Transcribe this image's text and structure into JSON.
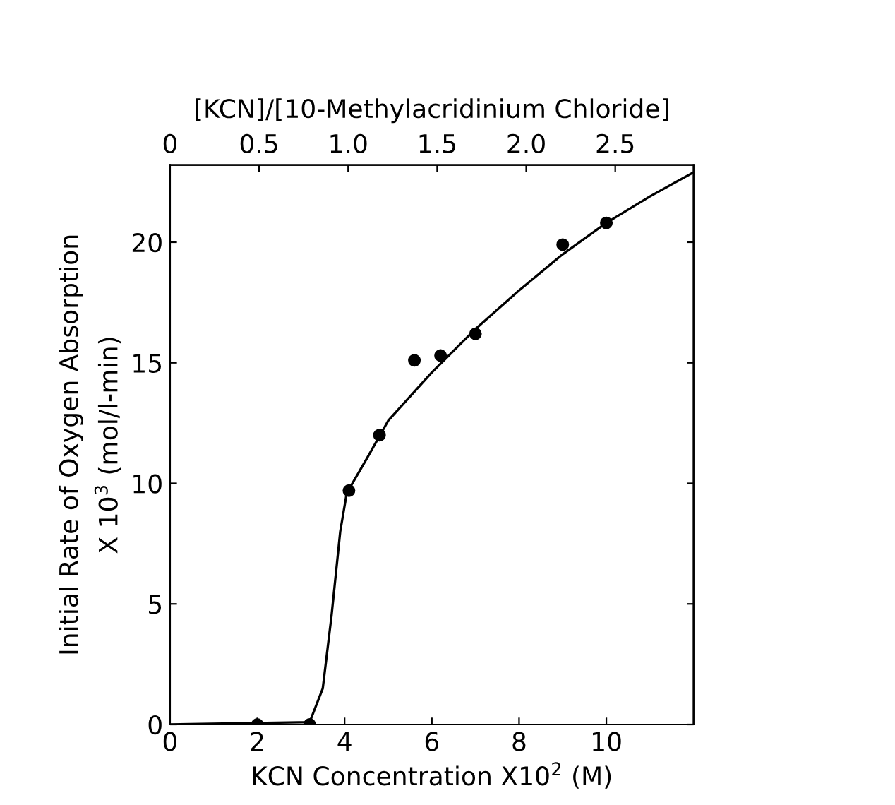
{
  "chart_data": {
    "type": "scatter",
    "xlabel": "KCN Concentration X10$^{2}$ (M)",
    "ylabel": "Initial Rate of Oxygen Absorption\nX 10$^{3}$ (mol/l-min)",
    "x2label": "[KCN]/[10-Methylacridinium Chloride]",
    "xlim": [
      0,
      12
    ],
    "xticks": [
      0,
      2,
      4,
      6,
      8,
      10
    ],
    "ylim": [
      0,
      23.2
    ],
    "yticks": [
      0,
      5,
      10,
      15,
      20
    ],
    "x2lim": [
      0,
      2.94
    ],
    "x2ticks": [
      0,
      0.5,
      {
        "value": 1.0,
        "label": "1.0"
      },
      1.5,
      {
        "value": 2.0,
        "label": "2.0"
      },
      2.5
    ],
    "grid": false,
    "legend": false,
    "series": [
      {
        "marker": "circle",
        "color": "#000000",
        "x": [
          2,
          3.2,
          4.1,
          4.8,
          5.6,
          6.2,
          7.0,
          9.0,
          10.0
        ],
        "values": [
          0,
          0,
          9.7,
          12.0,
          15.1,
          15.3,
          16.2,
          19.9,
          20.8
        ]
      },
      {
        "type": "line",
        "marker": "none",
        "line_style": "solid",
        "color": "#000000",
        "x": [
          0,
          3.2,
          3.5,
          3.7,
          3.9,
          4.05,
          4.5,
          5,
          6,
          7,
          8,
          9,
          10,
          11,
          12
        ],
        "values": [
          0,
          0.1,
          1.5,
          4.5,
          8,
          9.6,
          11,
          12.6,
          14.6,
          16.4,
          18,
          19.5,
          20.8,
          21.9,
          22.9
        ]
      }
    ]
  }
}
